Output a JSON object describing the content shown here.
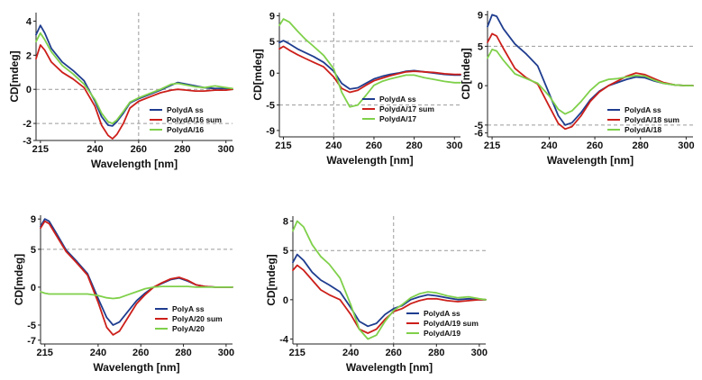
{
  "colors": {
    "series_1": "#1f3d8f",
    "series_2": "#cc1f1a",
    "series_3": "#7fd04a",
    "gridline": "#9a9a9a",
    "axis": "#222222"
  },
  "chart_data": [
    {
      "type": "line",
      "xlabel": "Wavelength [nm]",
      "ylabel": "CD[mdeg]",
      "xlim": [
        213,
        303
      ],
      "ylim": [
        -3,
        4.5
      ],
      "xticks": [
        215,
        240,
        260,
        280,
        300
      ],
      "yticks": [
        -3,
        -2,
        0,
        2,
        4
      ],
      "hlines": [
        0,
        -2
      ],
      "vlines": [
        260
      ],
      "legend": "bottom-right",
      "series": [
        {
          "name": "PolydA ss",
          "x": [
            213,
            215,
            217,
            220,
            225,
            230,
            235,
            240,
            243,
            246,
            248,
            250,
            253,
            256,
            260,
            265,
            270,
            275,
            278,
            282,
            286,
            290,
            295,
            300,
            303
          ],
          "y": [
            3.2,
            3.75,
            3.3,
            2.4,
            1.6,
            1.1,
            0.5,
            -0.7,
            -1.6,
            -2.1,
            -2.15,
            -1.9,
            -1.4,
            -0.8,
            -0.55,
            -0.3,
            -0.05,
            0.25,
            0.4,
            0.3,
            0.2,
            0.1,
            0.05,
            0.05,
            0.0
          ]
        },
        {
          "name": "PolydA/16 sum",
          "x": [
            213,
            215,
            217,
            220,
            225,
            230,
            235,
            240,
            243,
            246,
            248,
            250,
            253,
            256,
            260,
            265,
            270,
            275,
            278,
            282,
            286,
            290,
            295,
            300,
            303
          ],
          "y": [
            1.8,
            2.6,
            2.3,
            1.6,
            1.0,
            0.6,
            0.1,
            -1.0,
            -2.1,
            -2.7,
            -2.9,
            -2.65,
            -2.0,
            -1.1,
            -0.7,
            -0.45,
            -0.2,
            -0.05,
            0.0,
            -0.05,
            -0.1,
            -0.1,
            -0.05,
            -0.05,
            0.0
          ]
        },
        {
          "name": "PolydA/16",
          "x": [
            213,
            215,
            217,
            220,
            225,
            230,
            235,
            240,
            243,
            246,
            248,
            250,
            253,
            256,
            260,
            265,
            270,
            275,
            278,
            282,
            286,
            290,
            295,
            300,
            303
          ],
          "y": [
            2.8,
            3.3,
            2.9,
            2.2,
            1.4,
            0.9,
            0.3,
            -0.6,
            -1.4,
            -1.9,
            -2.0,
            -1.8,
            -1.3,
            -0.75,
            -0.5,
            -0.25,
            0.0,
            0.3,
            0.35,
            0.25,
            0.15,
            0.1,
            0.2,
            0.1,
            0.05
          ]
        }
      ]
    },
    {
      "type": "line",
      "xlabel": "Wavelength [nm]",
      "ylabel": "CD[mdeg]",
      "xlim": [
        213,
        303
      ],
      "ylim": [
        -10,
        9.5
      ],
      "xticks": [
        215,
        240,
        260,
        280,
        300
      ],
      "yticks": [
        -9,
        -5,
        0,
        5,
        9
      ],
      "hlines": [
        5,
        -5
      ],
      "vlines": [
        240
      ],
      "legend": "bottom-right",
      "series": [
        {
          "name": "PolydA ss",
          "x": [
            213,
            215,
            218,
            222,
            226,
            230,
            235,
            240,
            244,
            248,
            252,
            256,
            260,
            264,
            268,
            272,
            276,
            280,
            285,
            290,
            295,
            300,
            303
          ],
          "y": [
            4.8,
            5.1,
            4.6,
            3.8,
            3.2,
            2.6,
            1.7,
            0.3,
            -1.6,
            -2.5,
            -2.3,
            -1.6,
            -0.9,
            -0.5,
            -0.2,
            0.0,
            0.3,
            0.4,
            0.2,
            0.0,
            -0.2,
            -0.3,
            -0.3
          ]
        },
        {
          "name": "PolydA/17 sum",
          "x": [
            213,
            215,
            218,
            222,
            226,
            230,
            235,
            240,
            244,
            248,
            252,
            256,
            260,
            264,
            268,
            272,
            276,
            280,
            285,
            290,
            295,
            300,
            303
          ],
          "y": [
            3.8,
            4.2,
            3.6,
            2.9,
            2.3,
            1.7,
            1.0,
            -0.6,
            -2.4,
            -3.0,
            -2.7,
            -1.9,
            -1.2,
            -0.8,
            -0.4,
            -0.1,
            0.2,
            0.3,
            0.2,
            0.1,
            -0.1,
            -0.2,
            -0.2
          ]
        },
        {
          "name": "PolydA/17",
          "x": [
            213,
            215,
            218,
            222,
            226,
            230,
            235,
            240,
            244,
            248,
            252,
            256,
            260,
            264,
            268,
            272,
            276,
            280,
            285,
            290,
            295,
            300,
            303
          ],
          "y": [
            7.5,
            8.5,
            8.0,
            6.6,
            5.3,
            4.2,
            2.8,
            0.7,
            -3.0,
            -5.3,
            -5.0,
            -3.5,
            -1.9,
            -1.3,
            -0.9,
            -0.6,
            -0.3,
            -0.3,
            -0.7,
            -1.0,
            -1.3,
            -1.5,
            -1.5
          ]
        }
      ]
    },
    {
      "type": "line",
      "xlabel": "Wavelength [nm]",
      "ylabel": "CD[mdeg]",
      "xlim": [
        213,
        303
      ],
      "ylim": [
        -6.5,
        9.5
      ],
      "xticks": [
        215,
        240,
        260,
        280,
        300
      ],
      "yticks": [
        -6,
        -5,
        0,
        5,
        9
      ],
      "hlines": [
        5,
        -5
      ],
      "vlines": [],
      "legend": "bottom-right",
      "series": [
        {
          "name": "PolydA ss",
          "x": [
            213,
            215,
            217,
            220,
            225,
            230,
            235,
            240,
            244,
            247,
            250,
            254,
            258,
            262,
            266,
            270,
            274,
            278,
            282,
            286,
            290,
            295,
            300,
            303
          ],
          "y": [
            7.5,
            9.0,
            8.8,
            7.2,
            5.3,
            4.0,
            2.5,
            -1.0,
            -3.8,
            -5.0,
            -4.7,
            -3.4,
            -1.8,
            -0.7,
            0.0,
            0.4,
            0.8,
            1.1,
            1.0,
            0.6,
            0.3,
            0.1,
            0.0,
            0.0
          ]
        },
        {
          "name": "PolydA/18 sum",
          "x": [
            213,
            215,
            217,
            220,
            225,
            230,
            235,
            240,
            244,
            247,
            250,
            254,
            258,
            262,
            266,
            270,
            274,
            278,
            282,
            286,
            290,
            295,
            300,
            303
          ],
          "y": [
            5.5,
            6.6,
            6.3,
            4.7,
            2.2,
            1.0,
            0.2,
            -2.6,
            -4.8,
            -5.5,
            -5.2,
            -3.8,
            -2.0,
            -0.8,
            0.0,
            0.6,
            1.2,
            1.6,
            1.4,
            0.9,
            0.4,
            0.1,
            0.0,
            0.0
          ]
        },
        {
          "name": "PolydA/18",
          "x": [
            213,
            215,
            217,
            220,
            225,
            230,
            235,
            240,
            244,
            247,
            250,
            254,
            258,
            262,
            266,
            270,
            274,
            278,
            282,
            286,
            290,
            295,
            300,
            303
          ],
          "y": [
            3.5,
            4.6,
            4.4,
            3.2,
            1.5,
            0.9,
            0.3,
            -1.3,
            -3.0,
            -3.6,
            -3.2,
            -2.0,
            -0.6,
            0.4,
            0.8,
            0.9,
            1.1,
            1.3,
            1.2,
            0.7,
            0.3,
            0.1,
            0.0,
            0.0
          ]
        }
      ]
    },
    {
      "type": "line",
      "xlabel": "Wavelength [nm]",
      "ylabel": "CD[mdeg]",
      "xlim": [
        213,
        303
      ],
      "ylim": [
        -7.5,
        9.5
      ],
      "xticks": [
        215,
        240,
        260,
        280,
        300
      ],
      "yticks": [
        -7,
        -5,
        0,
        5,
        9
      ],
      "hlines": [
        5
      ],
      "vlines": [],
      "legend": "bottom-right",
      "series": [
        {
          "name": "PolyA ss",
          "x": [
            213,
            215,
            217,
            220,
            225,
            230,
            235,
            240,
            244,
            247,
            250,
            254,
            258,
            262,
            266,
            270,
            274,
            278,
            282,
            286,
            290,
            295,
            300,
            303
          ],
          "y": [
            8.0,
            9.0,
            8.7,
            7.3,
            4.9,
            3.4,
            1.8,
            -1.5,
            -4.0,
            -5.0,
            -4.6,
            -3.2,
            -1.8,
            -0.8,
            0.0,
            0.5,
            1.0,
            1.2,
            0.8,
            0.3,
            0.1,
            0.0,
            0.0,
            0.0
          ]
        },
        {
          "name": "PolyA/20 sum",
          "x": [
            213,
            215,
            217,
            220,
            225,
            230,
            235,
            240,
            244,
            247,
            250,
            254,
            258,
            262,
            266,
            270,
            274,
            278,
            282,
            286,
            290,
            295,
            300,
            303
          ],
          "y": [
            7.8,
            8.7,
            8.4,
            7.0,
            4.7,
            3.2,
            1.6,
            -2.0,
            -5.3,
            -6.3,
            -5.8,
            -4.0,
            -2.2,
            -1.0,
            0.0,
            0.6,
            1.1,
            1.3,
            0.9,
            0.3,
            0.1,
            0.0,
            0.0,
            0.0
          ]
        },
        {
          "name": "PolyA/20",
          "x": [
            213,
            215,
            217,
            220,
            225,
            230,
            235,
            240,
            244,
            247,
            250,
            254,
            258,
            262,
            266,
            270,
            274,
            278,
            282,
            286,
            290,
            295,
            300,
            303
          ],
          "y": [
            -0.6,
            -0.8,
            -0.9,
            -0.9,
            -0.9,
            -0.9,
            -0.9,
            -1.1,
            -1.4,
            -1.5,
            -1.4,
            -1.0,
            -0.6,
            -0.2,
            0.0,
            0.1,
            0.1,
            0.1,
            0.1,
            0.0,
            0.0,
            0.0,
            0.0,
            0.0
          ]
        }
      ]
    },
    {
      "type": "line",
      "xlabel": "Wavelength [nm]",
      "ylabel": "CD[mdeg]",
      "xlim": [
        213,
        303
      ],
      "ylim": [
        -4.5,
        8.5
      ],
      "xticks": [
        215,
        240,
        260,
        280,
        300
      ],
      "yticks": [
        -4,
        0,
        5,
        8
      ],
      "hlines": [
        5
      ],
      "vlines": [
        260
      ],
      "legend": "bottom-right",
      "series": [
        {
          "name": "PolydA ss",
          "x": [
            213,
            215,
            218,
            222,
            226,
            230,
            235,
            240,
            244,
            248,
            252,
            256,
            260,
            264,
            268,
            272,
            276,
            280,
            285,
            290,
            295,
            300,
            303
          ],
          "y": [
            3.8,
            4.6,
            4.0,
            2.8,
            2.0,
            1.5,
            0.8,
            -0.8,
            -2.2,
            -2.7,
            -2.4,
            -1.5,
            -0.9,
            -0.6,
            0.0,
            0.3,
            0.5,
            0.4,
            0.2,
            0.0,
            0.1,
            0.0,
            0.0
          ]
        },
        {
          "name": "PolydA/19 sum",
          "x": [
            213,
            215,
            218,
            222,
            226,
            230,
            235,
            240,
            244,
            248,
            252,
            256,
            260,
            264,
            268,
            272,
            276,
            280,
            285,
            290,
            295,
            300,
            303
          ],
          "y": [
            3.0,
            3.5,
            3.0,
            2.0,
            1.0,
            0.5,
            0.0,
            -1.5,
            -3.0,
            -3.4,
            -3.0,
            -2.0,
            -1.2,
            -0.9,
            -0.4,
            -0.1,
            0.1,
            0.1,
            -0.1,
            -0.2,
            -0.1,
            0.0,
            0.0
          ]
        },
        {
          "name": "PolydA/19",
          "x": [
            213,
            215,
            218,
            222,
            226,
            230,
            235,
            240,
            244,
            248,
            252,
            256,
            260,
            264,
            268,
            272,
            276,
            280,
            285,
            290,
            295,
            300,
            303
          ],
          "y": [
            7.0,
            8.0,
            7.4,
            5.6,
            4.4,
            3.6,
            2.2,
            -0.5,
            -3.0,
            -4.0,
            -3.6,
            -2.2,
            -1.1,
            -0.5,
            0.2,
            0.6,
            0.8,
            0.7,
            0.4,
            0.2,
            0.3,
            0.1,
            0.0
          ]
        }
      ]
    }
  ]
}
